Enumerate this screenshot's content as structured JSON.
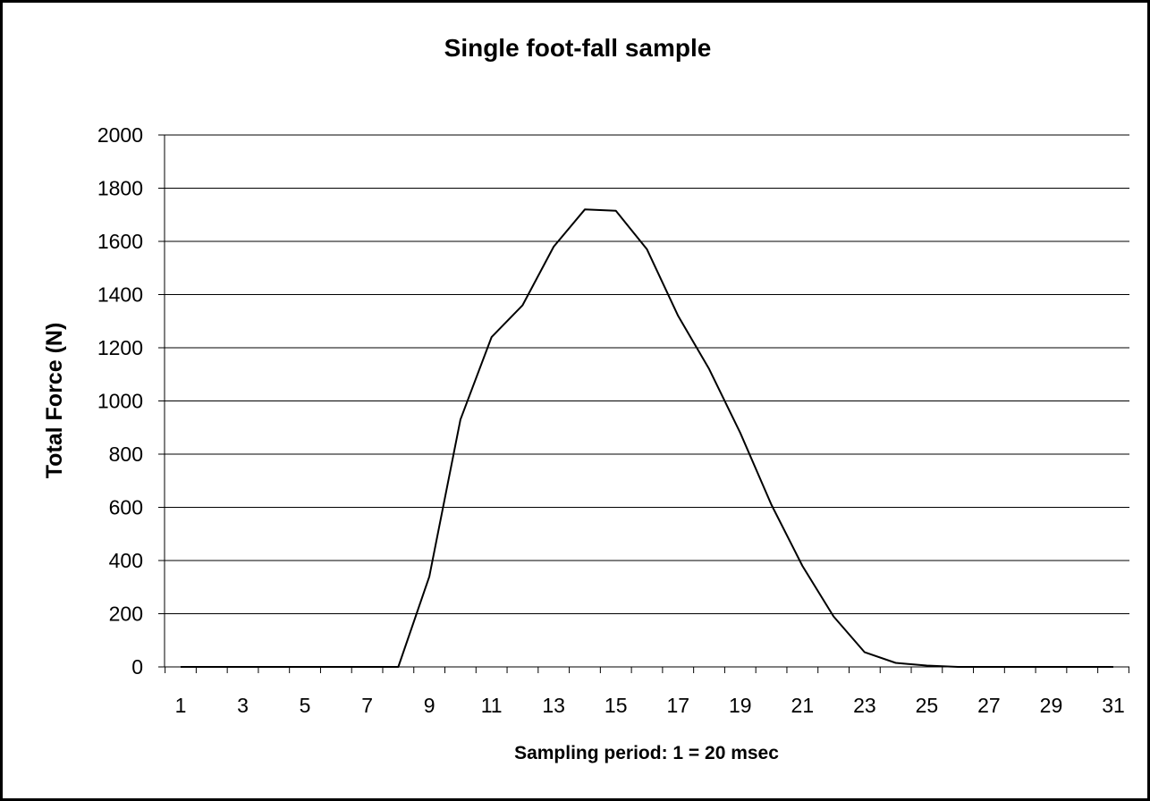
{
  "chart_data": {
    "type": "line",
    "title": "Single foot-fall sample",
    "xlabel": "Sampling period: 1 = 20 msec",
    "ylabel": "Total Force (N)",
    "ylim": [
      0,
      2000
    ],
    "yticks": [
      0,
      200,
      400,
      600,
      800,
      1000,
      1200,
      1400,
      1600,
      1800,
      2000
    ],
    "xticks": [
      1,
      3,
      5,
      7,
      9,
      11,
      13,
      15,
      17,
      19,
      21,
      23,
      25,
      27,
      29,
      31
    ],
    "x": [
      1,
      2,
      3,
      4,
      5,
      6,
      7,
      8,
      9,
      10,
      11,
      12,
      13,
      14,
      15,
      16,
      17,
      18,
      19,
      20,
      21,
      22,
      23,
      24,
      25,
      26,
      27,
      28,
      29,
      30,
      31
    ],
    "series": [
      {
        "values": [
          0,
          0,
          0,
          0,
          0,
          0,
          0,
          0,
          340,
          930,
          1240,
          1360,
          1580,
          1720,
          1715,
          1570,
          1320,
          1120,
          880,
          610,
          380,
          190,
          55,
          15,
          5,
          0,
          0,
          0,
          0,
          0,
          0
        ],
        "color": "#000000"
      }
    ],
    "grid": true,
    "legend": "none"
  }
}
